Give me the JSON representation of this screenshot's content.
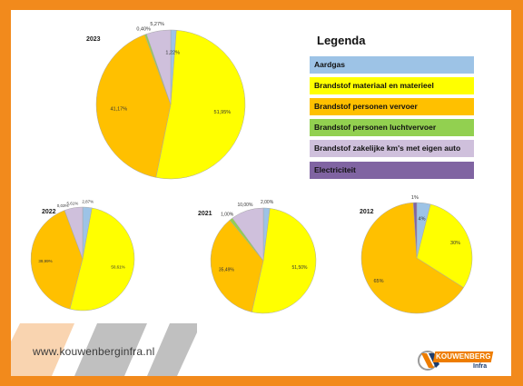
{
  "legend": {
    "title": "Legenda",
    "items": [
      {
        "label": "Aardgas",
        "color": "#9dc3e6"
      },
      {
        "label": "Brandstof materiaal en materieel",
        "color": "#ffff00"
      },
      {
        "label": "Brandstof personen vervoer",
        "color": "#ffc000"
      },
      {
        "label": "Brandstof personen luchtvervoer",
        "color": "#92d050"
      },
      {
        "label": "Brandstof zakelijke km's met eigen auto",
        "color": "#cfc0dc"
      },
      {
        "label": "Electriciteit",
        "color": "#8064a2"
      }
    ]
  },
  "footer": {
    "url": "www.kouwenberginfra.nl"
  },
  "logo": {
    "brand": "KOUWENBERG",
    "sub": "Infra"
  },
  "chart_data": [
    {
      "type": "pie",
      "title": "2023",
      "slices": [
        {
          "name": "Aardgas",
          "value": 1.22,
          "label": "1,22%"
        },
        {
          "name": "Brandstof materiaal en materieel",
          "value": 51.95,
          "label": "51,95%"
        },
        {
          "name": "Brandstof personen vervoer",
          "value": 41.17,
          "label": "41,17%"
        },
        {
          "name": "Brandstof personen luchtvervoer",
          "value": 0.4,
          "label": "0,40%"
        },
        {
          "name": "Brandstof zakelijke km's met eigen auto",
          "value": 5.27,
          "label": "5,27%"
        }
      ]
    },
    {
      "type": "pie",
      "title": "2022",
      "slices": [
        {
          "name": "Aardgas",
          "value": 2.87,
          "label": "2,87%"
        },
        {
          "name": "Brandstof materiaal en materieel",
          "value": 50.61,
          "label": "50,61%"
        },
        {
          "name": "Brandstof personen vervoer",
          "value": 39.99,
          "label": "39,99%"
        },
        {
          "name": "Brandstof personen luchtvervoer",
          "value": 0.03,
          "label": "0,03%"
        },
        {
          "name": "Brandstof zakelijke km's met eigen auto",
          "value": 5.61,
          "label": "5,61%"
        }
      ]
    },
    {
      "type": "pie",
      "title": "2021",
      "slices": [
        {
          "name": "Aardgas",
          "value": 2.0,
          "label": "2,00%"
        },
        {
          "name": "Brandstof materiaal en materieel",
          "value": 51.5,
          "label": "51,50%"
        },
        {
          "name": "Brandstof personen vervoer",
          "value": 35.49,
          "label": "35,49%"
        },
        {
          "name": "Brandstof personen luchtvervoer",
          "value": 1.0,
          "label": "1,00%"
        },
        {
          "name": "Brandstof zakelijke km's met eigen auto",
          "value": 10.0,
          "label": "10,00%"
        }
      ]
    },
    {
      "type": "pie",
      "title": "2012",
      "slices": [
        {
          "name": "Aardgas",
          "value": 4,
          "label": "4%"
        },
        {
          "name": "Brandstof materiaal en materieel",
          "value": 30,
          "label": "30%"
        },
        {
          "name": "Brandstof personen vervoer",
          "value": 65,
          "label": "65%"
        },
        {
          "name": "Electriciteit",
          "value": 1,
          "label": "1%"
        }
      ]
    }
  ]
}
